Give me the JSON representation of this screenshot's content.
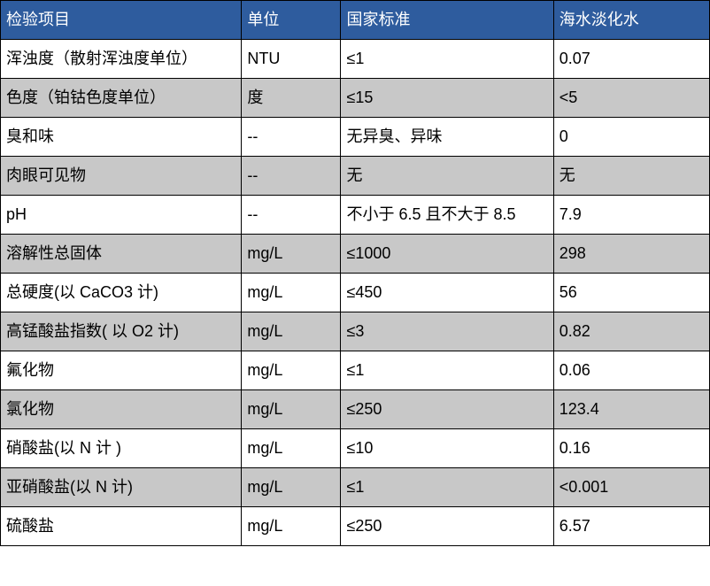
{
  "table": {
    "header_bg": "#2e5c9e",
    "header_color": "#ffffff",
    "row_odd_bg": "#ffffff",
    "row_even_bg": "#c8c8c8",
    "border_color": "#000000",
    "font_size_pt": 14,
    "columns": [
      "检验项目",
      "单位",
      "国家标准",
      "海水淡化水"
    ],
    "rows": [
      [
        "浑浊度（散射浑浊度单位）",
        "NTU",
        "≤1",
        "0.07"
      ],
      [
        "色度（铂钴色度单位）",
        "度",
        "≤15",
        "<5"
      ],
      [
        "臭和味",
        "--",
        "无异臭、异味",
        "0"
      ],
      [
        "肉眼可见物",
        "--",
        "无",
        "无"
      ],
      [
        "pH",
        "--",
        "不小于 6.5 且不大于 8.5",
        "7.9"
      ],
      [
        "溶解性总固体",
        "mg/L",
        "≤1000",
        "298"
      ],
      [
        "总硬度(以 CaCO3 计)",
        "mg/L",
        "≤450",
        "56"
      ],
      [
        "高锰酸盐指数( 以 O2 计)",
        "mg/L",
        "≤3",
        "0.82"
      ],
      [
        "氟化物",
        "mg/L",
        "≤1",
        "0.06"
      ],
      [
        "氯化物",
        "mg/L",
        "≤250",
        "123.4"
      ],
      [
        "硝酸盐(以 N 计 )",
        "mg/L",
        "≤10",
        "0.16"
      ],
      [
        "亚硝酸盐(以 N 计)",
        "mg/L",
        "≤1",
        "<0.001"
      ],
      [
        "硫酸盐",
        "mg/L",
        "≤250",
        "6.57"
      ]
    ]
  }
}
